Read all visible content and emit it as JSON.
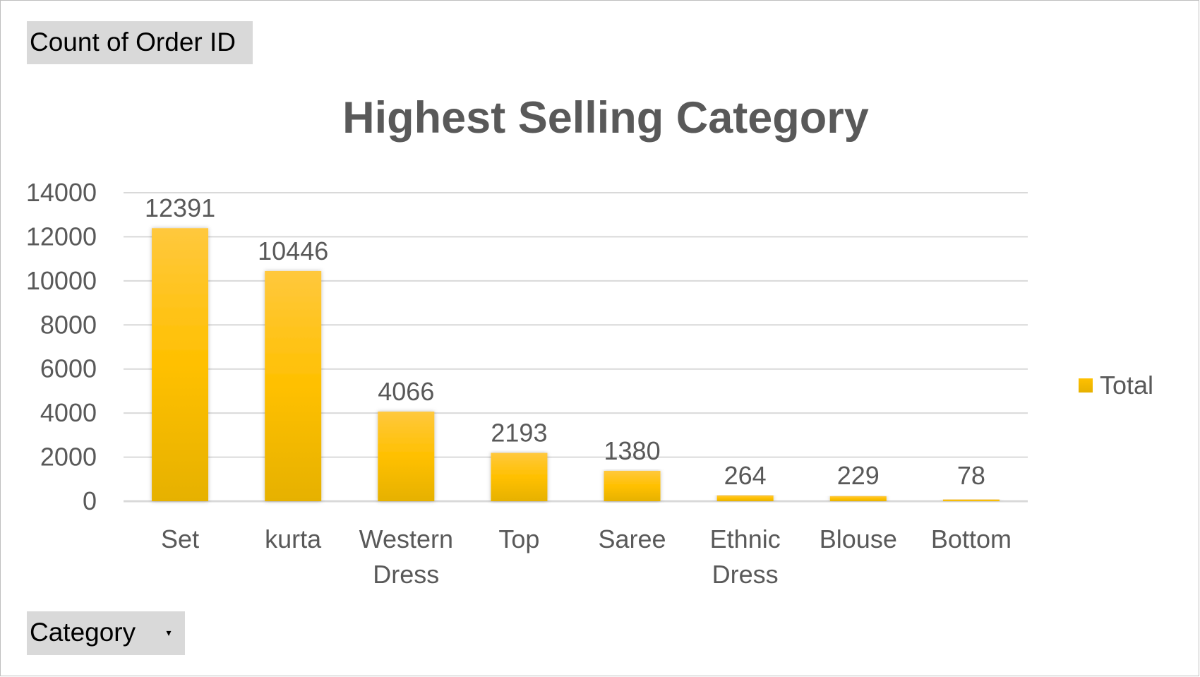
{
  "pivot": {
    "value_field": "Count of Order ID",
    "row_field": "Category"
  },
  "chart_data": {
    "type": "bar",
    "title": "Highest Selling Category",
    "categories": [
      [
        "Set"
      ],
      [
        "kurta"
      ],
      [
        "Western",
        "Dress"
      ],
      [
        "Top"
      ],
      [
        "Saree"
      ],
      [
        "Ethnic",
        "Dress"
      ],
      [
        "Blouse"
      ],
      [
        "Bottom"
      ]
    ],
    "series": [
      {
        "name": "Total",
        "values": [
          12391,
          10446,
          4066,
          2193,
          1380,
          264,
          229,
          78
        ]
      }
    ],
    "ylim": [
      0,
      14000
    ],
    "yticks": [
      0,
      2000,
      4000,
      6000,
      8000,
      10000,
      12000,
      14000
    ],
    "grid": true,
    "data_labels": true,
    "legend_position": "right",
    "colors": {
      "bar": "#ffc000",
      "bar_dark": "#e6b100",
      "grid": "#d9d9d9",
      "text": "#595959"
    }
  }
}
